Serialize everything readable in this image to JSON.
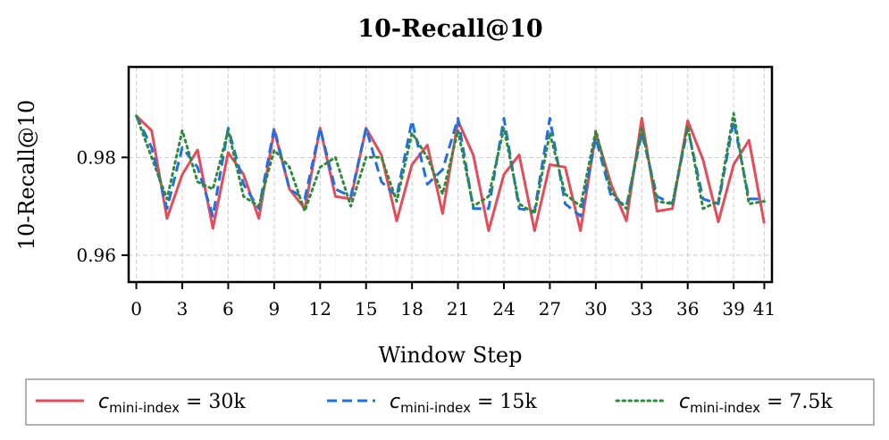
{
  "chart_data": {
    "type": "line",
    "title": "10-Recall@10",
    "xlabel": "Window Step",
    "ylabel": "10-Recall@10",
    "xlim": [
      -0.5,
      41.5
    ],
    "ylim": [
      0.9545,
      0.9985
    ],
    "xticks": [
      0,
      3,
      6,
      9,
      12,
      15,
      18,
      21,
      24,
      27,
      30,
      33,
      36,
      39,
      41
    ],
    "xtick_labels": [
      "0",
      "3",
      "6",
      "9",
      "12",
      "15",
      "18",
      "21",
      "24",
      "27",
      "30",
      "33",
      "36",
      "39",
      "41"
    ],
    "yticks": [
      0.96,
      0.98
    ],
    "ytick_labels": [
      "0.96",
      "0.98"
    ],
    "grid": true,
    "legend_position": "bottom",
    "x": [
      0,
      1,
      2,
      3,
      4,
      5,
      6,
      7,
      8,
      9,
      10,
      11,
      12,
      13,
      14,
      15,
      16,
      17,
      18,
      19,
      20,
      21,
      22,
      23,
      24,
      25,
      26,
      27,
      28,
      29,
      30,
      31,
      32,
      33,
      34,
      35,
      36,
      37,
      38,
      39,
      40,
      41
    ],
    "series": [
      {
        "name": "c_mini-index = 30k",
        "legend_label": {
          "symbol": "c",
          "subscript": "mini-index",
          "suffix": " = 30k"
        },
        "color": "#e64b5a",
        "style": "solid",
        "values": [
          0.9885,
          0.9855,
          0.9675,
          0.9765,
          0.9815,
          0.9655,
          0.981,
          0.9765,
          0.9675,
          0.9855,
          0.9735,
          0.9695,
          0.986,
          0.972,
          0.9715,
          0.986,
          0.9805,
          0.967,
          0.9785,
          0.9825,
          0.9685,
          0.9875,
          0.9805,
          0.965,
          0.9765,
          0.9805,
          0.965,
          0.9785,
          0.978,
          0.965,
          0.985,
          0.9745,
          0.967,
          0.988,
          0.969,
          0.9695,
          0.9875,
          0.9795,
          0.9668,
          0.9785,
          0.9835,
          0.9665
        ]
      },
      {
        "name": "c_mini-index = 15k",
        "legend_label": {
          "symbol": "c",
          "subscript": "mini-index",
          "suffix": " = 15k"
        },
        "color": "#1f6fe8",
        "style": "dashed",
        "values": [
          0.9885,
          0.982,
          0.9695,
          0.982,
          0.978,
          0.968,
          0.986,
          0.9745,
          0.9695,
          0.986,
          0.9735,
          0.9715,
          0.986,
          0.9735,
          0.972,
          0.986,
          0.975,
          0.972,
          0.9875,
          0.9745,
          0.9775,
          0.988,
          0.9695,
          0.9695,
          0.988,
          0.9695,
          0.969,
          0.988,
          0.9705,
          0.968,
          0.984,
          0.972,
          0.97,
          0.985,
          0.972,
          0.9705,
          0.986,
          0.9715,
          0.9705,
          0.9875,
          0.9715,
          0.9715
        ]
      },
      {
        "name": "c_mini-index = 7.5k",
        "legend_label": {
          "symbol": "c",
          "subscript": "mini-index",
          "suffix": " = 7.5k"
        },
        "color": "#2e8b3a",
        "style": "dotted",
        "values": [
          0.9885,
          0.98,
          0.9715,
          0.9855,
          0.975,
          0.9735,
          0.9855,
          0.972,
          0.97,
          0.9815,
          0.978,
          0.969,
          0.978,
          0.98,
          0.97,
          0.98,
          0.98,
          0.971,
          0.985,
          0.98,
          0.9725,
          0.9855,
          0.97,
          0.972,
          0.986,
          0.9705,
          0.9685,
          0.985,
          0.9725,
          0.97,
          0.9855,
          0.973,
          0.9695,
          0.986,
          0.971,
          0.9705,
          0.9865,
          0.9695,
          0.971,
          0.989,
          0.9705,
          0.971
        ]
      }
    ]
  }
}
